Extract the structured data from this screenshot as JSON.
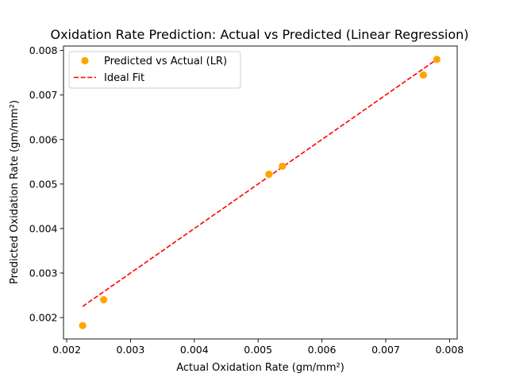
{
  "chart_data": {
    "type": "scatter",
    "title": "Oxidation Rate Prediction: Actual vs Predicted (Linear Regression)",
    "xlabel": "Actual Oxidation Rate (gm/mm²)",
    "ylabel": "Predicted Oxidation Rate (gm/mm²)",
    "xlim": [
      0.00195,
      0.00812
    ],
    "ylim": [
      0.00152,
      0.0081
    ],
    "x_ticks": [
      "0.002",
      "0.003",
      "0.004",
      "0.005",
      "0.006",
      "0.007",
      "0.008"
    ],
    "y_ticks": [
      "0.002",
      "0.003",
      "0.004",
      "0.005",
      "0.006",
      "0.007",
      "0.008"
    ],
    "grid": false,
    "legend_position": "top-left",
    "series": [
      {
        "name": "Predicted vs Actual (LR)",
        "kind": "scatter",
        "color": "#FFA500",
        "points": [
          {
            "x": 0.00225,
            "y": 0.00182
          },
          {
            "x": 0.00258,
            "y": 0.0024
          },
          {
            "x": 0.00517,
            "y": 0.00522
          },
          {
            "x": 0.00538,
            "y": 0.0054
          },
          {
            "x": 0.00759,
            "y": 0.00745
          },
          {
            "x": 0.0078,
            "y": 0.0078
          }
        ]
      },
      {
        "name": "Ideal Fit",
        "kind": "line",
        "style": "dashed",
        "color": "#FF0000",
        "points": [
          {
            "x": 0.00225,
            "y": 0.00225
          },
          {
            "x": 0.0078,
            "y": 0.0078
          }
        ]
      }
    ]
  }
}
